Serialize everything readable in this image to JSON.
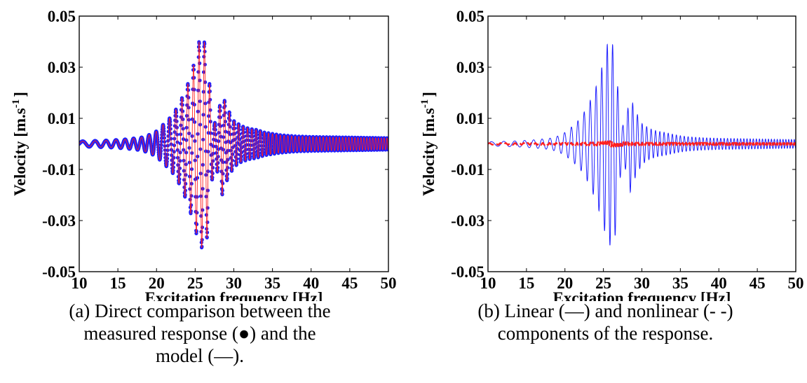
{
  "charts": [
    {
      "id": "a",
      "type": "line",
      "xlabel": "Excitation frequency [Hz]",
      "ylabel_main": "Velocity [m.s",
      "ylabel_sup": "-1",
      "ylabel_end": "]",
      "xlim": [
        10,
        50
      ],
      "ylim": [
        -0.05,
        0.05
      ],
      "xticks": [
        10,
        15,
        20,
        25,
        30,
        35,
        40,
        45,
        50
      ],
      "yticks": [
        -0.05,
        -0.03,
        -0.01,
        0.01,
        0.03,
        0.05
      ],
      "ytick_labels": [
        "-0.05",
        "-0.03",
        "-0.01",
        "0.01",
        "0.03",
        "0.05"
      ],
      "caption_lines": [
        "(a)  Direct comparison between the",
        "measured response (●) and the",
        "model (—)."
      ],
      "series": [
        {
          "style": "markers",
          "color": "#1f1fff"
        },
        {
          "style": "solid",
          "color": "#ff1f1f"
        }
      ],
      "envelope": {
        "x": [
          10,
          12,
          14,
          16,
          18,
          19,
          20,
          21,
          22,
          23,
          24,
          25,
          25.5,
          26,
          26.5,
          27,
          27.5,
          28,
          28.5,
          29,
          30,
          31,
          32,
          33,
          34,
          35,
          36,
          38,
          40,
          42,
          44,
          46,
          48,
          50
        ],
        "y": [
          0.001,
          0.0012,
          0.0014,
          0.0018,
          0.0025,
          0.0035,
          0.005,
          0.008,
          0.011,
          0.016,
          0.023,
          0.033,
          0.04,
          0.041,
          0.038,
          0.018,
          0.008,
          0.012,
          0.02,
          0.015,
          0.009,
          0.007,
          0.006,
          0.0055,
          0.0045,
          0.004,
          0.0035,
          0.003,
          0.0028,
          0.0027,
          0.0026,
          0.0025,
          0.0024,
          0.0023
        ]
      }
    },
    {
      "id": "b",
      "type": "line",
      "xlabel": "Excitation frequency [Hz]",
      "ylabel_main": "Velocity [m.s",
      "ylabel_sup": "-1",
      "ylabel_end": "]",
      "xlim": [
        10,
        50
      ],
      "ylim": [
        -0.05,
        0.05
      ],
      "xticks": [
        10,
        15,
        20,
        25,
        30,
        35,
        40,
        45,
        50
      ],
      "yticks": [
        -0.05,
        -0.03,
        -0.01,
        0.01,
        0.03,
        0.05
      ],
      "ytick_labels": [
        "-0.05",
        "-0.03",
        "-0.01",
        "0.01",
        "0.03",
        "0.05"
      ],
      "caption_lines": [
        "(b)  Linear (—) and nonlinear (- -)",
        "components of the response."
      ],
      "series": [
        {
          "style": "solid",
          "color": "#1f1fff"
        },
        {
          "style": "dashed",
          "color": "#ff1f1f"
        }
      ],
      "envelope": {
        "x": [
          10,
          12,
          14,
          16,
          18,
          19,
          20,
          21,
          22,
          23,
          24,
          25,
          25.5,
          26,
          26.5,
          27,
          27.5,
          28,
          28.5,
          29,
          30,
          31,
          32,
          33,
          34,
          35,
          36,
          38,
          40,
          42,
          44,
          46,
          48,
          50
        ],
        "y": [
          0.0008,
          0.001,
          0.0012,
          0.0016,
          0.0022,
          0.003,
          0.0045,
          0.007,
          0.01,
          0.015,
          0.022,
          0.032,
          0.039,
          0.04,
          0.037,
          0.017,
          0.007,
          0.011,
          0.019,
          0.014,
          0.008,
          0.006,
          0.005,
          0.0045,
          0.0038,
          0.0032,
          0.0028,
          0.0024,
          0.0022,
          0.0021,
          0.002,
          0.0019,
          0.0018,
          0.0017
        ]
      },
      "nonlinear_envelope": {
        "x": [
          10,
          20,
          24,
          25,
          26,
          27,
          28,
          30,
          40,
          50
        ],
        "y": [
          0.0003,
          0.0004,
          0.0006,
          0.0009,
          0.0011,
          0.0009,
          0.0006,
          0.0005,
          0.0004,
          0.0003
        ]
      }
    }
  ]
}
